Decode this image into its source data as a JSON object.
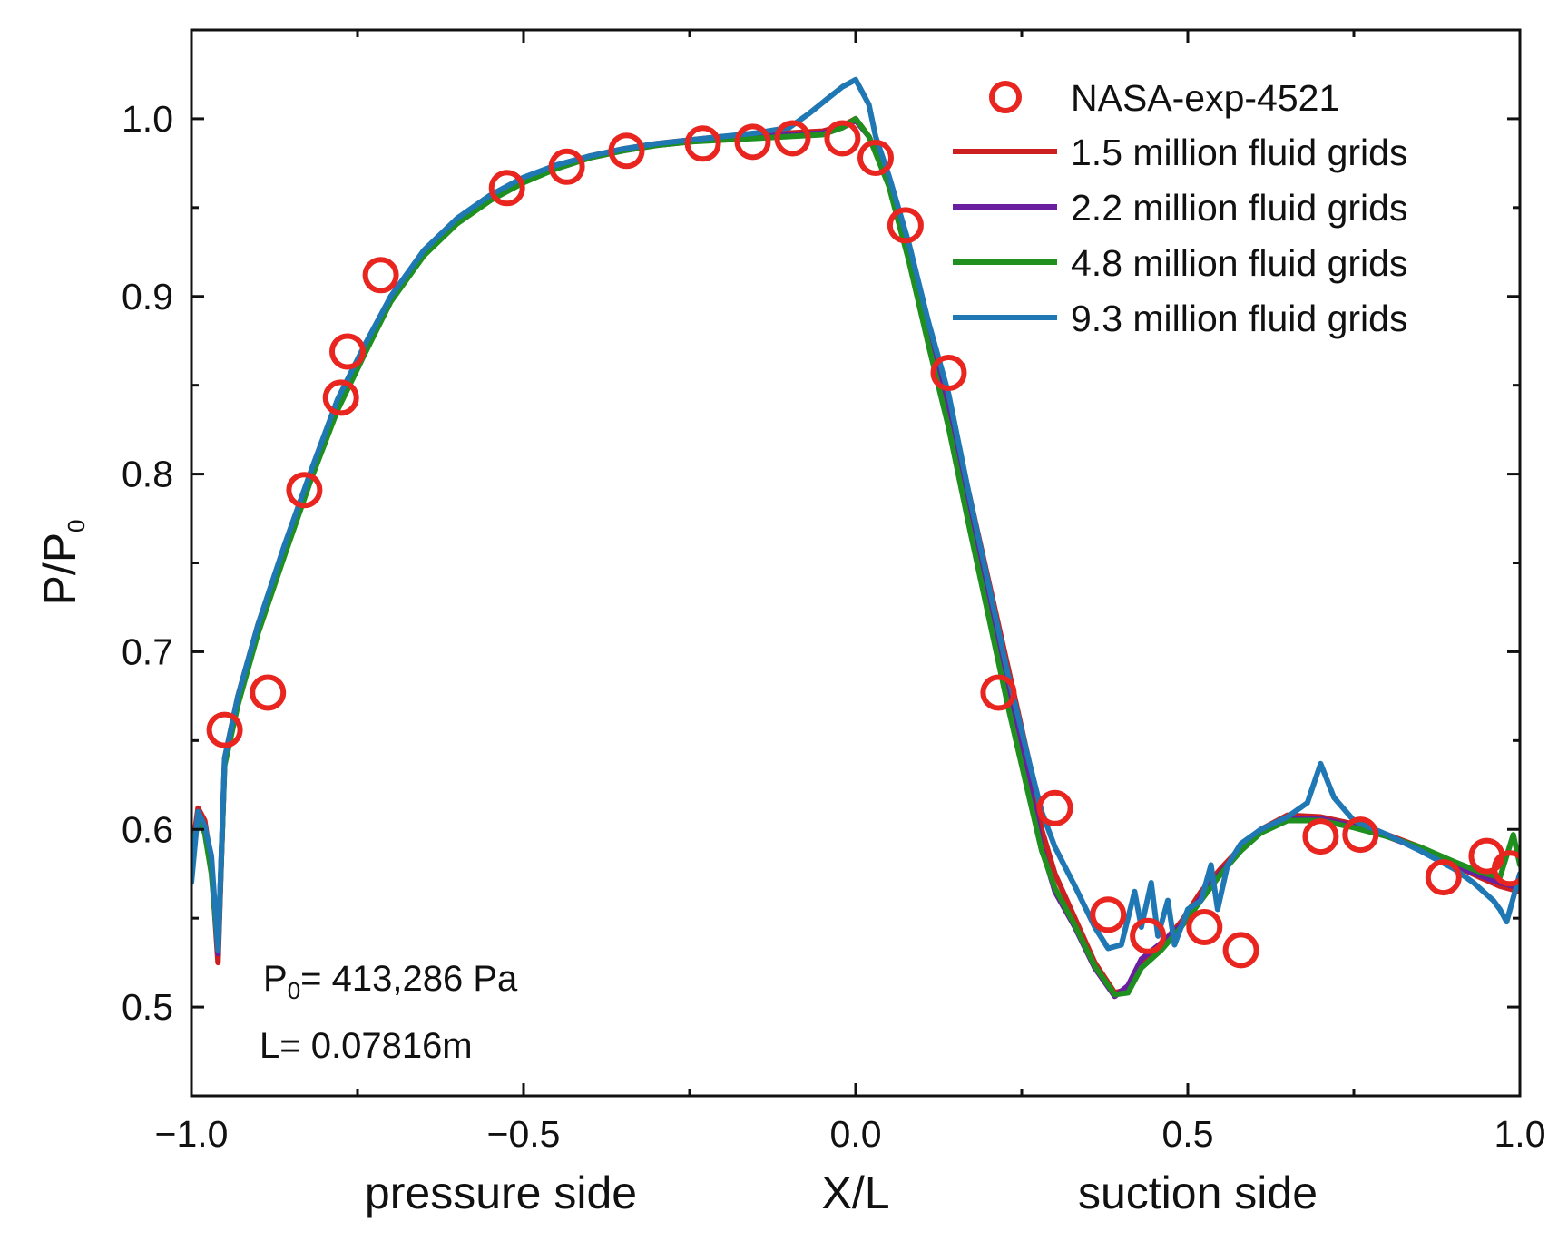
{
  "chart_data": {
    "type": "line",
    "title": "",
    "xlabel": "X/L",
    "ylabel": "P/P",
    "ylabel_subscript": "0",
    "x_side_labels": {
      "left": "pressure side",
      "right": "suction side"
    },
    "xlim": [
      -1.0,
      1.0
    ],
    "ylim": [
      0.45,
      1.05
    ],
    "xticks": [
      -1.0,
      -0.5,
      0.0,
      0.5,
      1.0
    ],
    "xtick_labels": [
      "−1.0",
      "−0.5",
      "0.0",
      "0.5",
      "1.0"
    ],
    "yticks": [
      0.5,
      0.6,
      0.7,
      0.8,
      0.9,
      1.0
    ],
    "ytick_labels": [
      "0.5",
      "0.6",
      "0.7",
      "0.8",
      "0.9",
      "1.0"
    ],
    "grid": false,
    "legend_position": "top-right",
    "annotations": {
      "p0": {
        "prefix": "P",
        "sub": "0",
        "text": "= 413,286 Pa"
      },
      "length": "L= 0.07816m"
    },
    "scatter_series": [
      {
        "name": "NASA-exp-4521",
        "color": "#e8251f",
        "marker": "open-circle",
        "points": [
          [
            -0.95,
            0.656
          ],
          [
            -0.885,
            0.677
          ],
          [
            -0.83,
            0.791
          ],
          [
            -0.775,
            0.843
          ],
          [
            -0.765,
            0.869
          ],
          [
            -0.715,
            0.912
          ],
          [
            -0.525,
            0.961
          ],
          [
            -0.435,
            0.973
          ],
          [
            -0.345,
            0.982
          ],
          [
            -0.23,
            0.986
          ],
          [
            -0.155,
            0.987
          ],
          [
            -0.095,
            0.989
          ],
          [
            -0.02,
            0.989
          ],
          [
            0.03,
            0.978
          ],
          [
            0.075,
            0.94
          ],
          [
            0.14,
            0.857
          ],
          [
            0.215,
            0.677
          ],
          [
            0.3,
            0.612
          ],
          [
            0.38,
            0.552
          ],
          [
            0.44,
            0.54
          ],
          [
            0.525,
            0.545
          ],
          [
            0.58,
            0.532
          ],
          [
            0.7,
            0.596
          ],
          [
            0.76,
            0.597
          ],
          [
            0.885,
            0.573
          ],
          [
            0.95,
            0.585
          ],
          [
            0.985,
            0.578
          ]
        ]
      }
    ],
    "line_series": [
      {
        "name": "1.5 million fluid grids",
        "color": "#cc1f1f",
        "points": [
          [
            -1.0,
            0.585
          ],
          [
            -0.99,
            0.612
          ],
          [
            -0.98,
            0.605
          ],
          [
            -0.97,
            0.58
          ],
          [
            -0.96,
            0.525
          ],
          [
            -0.95,
            0.64
          ],
          [
            -0.93,
            0.675
          ],
          [
            -0.9,
            0.715
          ],
          [
            -0.86,
            0.758
          ],
          [
            -0.82,
            0.8
          ],
          [
            -0.78,
            0.84
          ],
          [
            -0.74,
            0.87
          ],
          [
            -0.7,
            0.9
          ],
          [
            -0.65,
            0.925
          ],
          [
            -0.6,
            0.943
          ],
          [
            -0.55,
            0.956
          ],
          [
            -0.5,
            0.966
          ],
          [
            -0.45,
            0.973
          ],
          [
            -0.4,
            0.979
          ],
          [
            -0.35,
            0.983
          ],
          [
            -0.3,
            0.986
          ],
          [
            -0.25,
            0.988
          ],
          [
            -0.2,
            0.99
          ],
          [
            -0.15,
            0.991
          ],
          [
            -0.1,
            0.992
          ],
          [
            -0.05,
            0.993
          ],
          [
            -0.02,
            0.996
          ],
          [
            0.0,
            1.0
          ],
          [
            0.02,
            0.99
          ],
          [
            0.05,
            0.965
          ],
          [
            0.08,
            0.925
          ],
          [
            0.11,
            0.88
          ],
          [
            0.14,
            0.84
          ],
          [
            0.17,
            0.79
          ],
          [
            0.2,
            0.74
          ],
          [
            0.23,
            0.69
          ],
          [
            0.26,
            0.64
          ],
          [
            0.28,
            0.6
          ],
          [
            0.3,
            0.575
          ],
          [
            0.33,
            0.55
          ],
          [
            0.36,
            0.525
          ],
          [
            0.39,
            0.508
          ],
          [
            0.41,
            0.51
          ],
          [
            0.43,
            0.525
          ],
          [
            0.46,
            0.535
          ],
          [
            0.49,
            0.548
          ],
          [
            0.52,
            0.565
          ],
          [
            0.55,
            0.578
          ],
          [
            0.58,
            0.59
          ],
          [
            0.61,
            0.6
          ],
          [
            0.65,
            0.608
          ],
          [
            0.7,
            0.607
          ],
          [
            0.75,
            0.603
          ],
          [
            0.8,
            0.597
          ],
          [
            0.85,
            0.59
          ],
          [
            0.9,
            0.58
          ],
          [
            0.94,
            0.573
          ],
          [
            0.97,
            0.568
          ],
          [
            1.0,
            0.565
          ]
        ]
      },
      {
        "name": "2.2 million fluid grids",
        "color": "#6a1fa0",
        "points": [
          [
            -1.0,
            0.58
          ],
          [
            -0.99,
            0.608
          ],
          [
            -0.98,
            0.6
          ],
          [
            -0.97,
            0.578
          ],
          [
            -0.96,
            0.53
          ],
          [
            -0.95,
            0.638
          ],
          [
            -0.93,
            0.672
          ],
          [
            -0.9,
            0.712
          ],
          [
            -0.86,
            0.756
          ],
          [
            -0.82,
            0.798
          ],
          [
            -0.78,
            0.838
          ],
          [
            -0.74,
            0.868
          ],
          [
            -0.7,
            0.898
          ],
          [
            -0.65,
            0.924
          ],
          [
            -0.6,
            0.942
          ],
          [
            -0.55,
            0.955
          ],
          [
            -0.5,
            0.965
          ],
          [
            -0.45,
            0.972
          ],
          [
            -0.4,
            0.978
          ],
          [
            -0.35,
            0.982
          ],
          [
            -0.3,
            0.985
          ],
          [
            -0.25,
            0.987
          ],
          [
            -0.2,
            0.989
          ],
          [
            -0.15,
            0.99
          ],
          [
            -0.1,
            0.991
          ],
          [
            -0.05,
            0.992
          ],
          [
            -0.02,
            0.995
          ],
          [
            0.0,
            0.999
          ],
          [
            0.02,
            0.99
          ],
          [
            0.05,
            0.963
          ],
          [
            0.08,
            0.922
          ],
          [
            0.11,
            0.876
          ],
          [
            0.14,
            0.832
          ],
          [
            0.17,
            0.78
          ],
          [
            0.2,
            0.728
          ],
          [
            0.23,
            0.676
          ],
          [
            0.26,
            0.628
          ],
          [
            0.28,
            0.59
          ],
          [
            0.3,
            0.565
          ],
          [
            0.33,
            0.545
          ],
          [
            0.36,
            0.522
          ],
          [
            0.39,
            0.506
          ],
          [
            0.41,
            0.512
          ],
          [
            0.43,
            0.527
          ],
          [
            0.46,
            0.536
          ],
          [
            0.49,
            0.546
          ],
          [
            0.52,
            0.562
          ],
          [
            0.55,
            0.576
          ],
          [
            0.58,
            0.589
          ],
          [
            0.61,
            0.599
          ],
          [
            0.65,
            0.606
          ],
          [
            0.7,
            0.606
          ],
          [
            0.75,
            0.602
          ],
          [
            0.8,
            0.596
          ],
          [
            0.85,
            0.589
          ],
          [
            0.9,
            0.58
          ],
          [
            0.94,
            0.574
          ],
          [
            0.97,
            0.57
          ],
          [
            1.0,
            0.567
          ]
        ]
      },
      {
        "name": "4.8 million fluid grids",
        "color": "#1f8f1f",
        "points": [
          [
            -1.0,
            0.582
          ],
          [
            -0.99,
            0.606
          ],
          [
            -0.98,
            0.598
          ],
          [
            -0.97,
            0.575
          ],
          [
            -0.96,
            0.532
          ],
          [
            -0.95,
            0.636
          ],
          [
            -0.93,
            0.67
          ],
          [
            -0.9,
            0.71
          ],
          [
            -0.86,
            0.754
          ],
          [
            -0.82,
            0.797
          ],
          [
            -0.78,
            0.836
          ],
          [
            -0.74,
            0.867
          ],
          [
            -0.7,
            0.897
          ],
          [
            -0.65,
            0.923
          ],
          [
            -0.6,
            0.941
          ],
          [
            -0.55,
            0.954
          ],
          [
            -0.5,
            0.964
          ],
          [
            -0.45,
            0.972
          ],
          [
            -0.4,
            0.978
          ],
          [
            -0.35,
            0.982
          ],
          [
            -0.3,
            0.985
          ],
          [
            -0.25,
            0.987
          ],
          [
            -0.2,
            0.988
          ],
          [
            -0.15,
            0.989
          ],
          [
            -0.1,
            0.99
          ],
          [
            -0.05,
            0.991
          ],
          [
            -0.02,
            0.995
          ],
          [
            0.0,
            1.0
          ],
          [
            0.02,
            0.99
          ],
          [
            0.05,
            0.962
          ],
          [
            0.08,
            0.92
          ],
          [
            0.11,
            0.872
          ],
          [
            0.14,
            0.826
          ],
          [
            0.17,
            0.772
          ],
          [
            0.2,
            0.72
          ],
          [
            0.23,
            0.668
          ],
          [
            0.26,
            0.62
          ],
          [
            0.28,
            0.588
          ],
          [
            0.3,
            0.567
          ],
          [
            0.33,
            0.546
          ],
          [
            0.36,
            0.523
          ],
          [
            0.39,
            0.507
          ],
          [
            0.41,
            0.508
          ],
          [
            0.43,
            0.522
          ],
          [
            0.46,
            0.532
          ],
          [
            0.49,
            0.545
          ],
          [
            0.52,
            0.56
          ],
          [
            0.55,
            0.575
          ],
          [
            0.58,
            0.588
          ],
          [
            0.61,
            0.598
          ],
          [
            0.65,
            0.605
          ],
          [
            0.7,
            0.605
          ],
          [
            0.75,
            0.601
          ],
          [
            0.8,
            0.596
          ],
          [
            0.85,
            0.59
          ],
          [
            0.9,
            0.582
          ],
          [
            0.94,
            0.576
          ],
          [
            0.97,
            0.573
          ],
          [
            0.99,
            0.597
          ],
          [
            1.0,
            0.58
          ]
        ]
      },
      {
        "name": "9.3 million fluid grids",
        "color": "#1f77b4",
        "points": [
          [
            -1.0,
            0.57
          ],
          [
            -0.99,
            0.61
          ],
          [
            -0.98,
            0.602
          ],
          [
            -0.97,
            0.585
          ],
          [
            -0.96,
            0.532
          ],
          [
            -0.95,
            0.64
          ],
          [
            -0.93,
            0.675
          ],
          [
            -0.9,
            0.715
          ],
          [
            -0.86,
            0.76
          ],
          [
            -0.82,
            0.802
          ],
          [
            -0.78,
            0.842
          ],
          [
            -0.74,
            0.872
          ],
          [
            -0.7,
            0.9
          ],
          [
            -0.65,
            0.926
          ],
          [
            -0.6,
            0.944
          ],
          [
            -0.55,
            0.957
          ],
          [
            -0.5,
            0.967
          ],
          [
            -0.45,
            0.974
          ],
          [
            -0.4,
            0.979
          ],
          [
            -0.35,
            0.983
          ],
          [
            -0.3,
            0.986
          ],
          [
            -0.25,
            0.988
          ],
          [
            -0.2,
            0.99
          ],
          [
            -0.15,
            0.992
          ],
          [
            -0.1,
            0.995
          ],
          [
            -0.07,
            1.003
          ],
          [
            -0.04,
            1.012
          ],
          [
            -0.02,
            1.018
          ],
          [
            0.0,
            1.022
          ],
          [
            0.02,
            1.008
          ],
          [
            0.03,
            0.99
          ],
          [
            0.05,
            0.968
          ],
          [
            0.08,
            0.93
          ],
          [
            0.11,
            0.885
          ],
          [
            0.14,
            0.845
          ],
          [
            0.17,
            0.79
          ],
          [
            0.2,
            0.738
          ],
          [
            0.23,
            0.686
          ],
          [
            0.26,
            0.64
          ],
          [
            0.28,
            0.61
          ],
          [
            0.3,
            0.59
          ],
          [
            0.33,
            0.568
          ],
          [
            0.36,
            0.545
          ],
          [
            0.38,
            0.533
          ],
          [
            0.4,
            0.535
          ],
          [
            0.42,
            0.565
          ],
          [
            0.43,
            0.545
          ],
          [
            0.445,
            0.57
          ],
          [
            0.455,
            0.54
          ],
          [
            0.47,
            0.56
          ],
          [
            0.48,
            0.535
          ],
          [
            0.5,
            0.555
          ],
          [
            0.52,
            0.56
          ],
          [
            0.535,
            0.58
          ],
          [
            0.545,
            0.555
          ],
          [
            0.56,
            0.58
          ],
          [
            0.58,
            0.592
          ],
          [
            0.61,
            0.6
          ],
          [
            0.65,
            0.607
          ],
          [
            0.68,
            0.615
          ],
          [
            0.7,
            0.637
          ],
          [
            0.72,
            0.618
          ],
          [
            0.75,
            0.605
          ],
          [
            0.8,
            0.597
          ],
          [
            0.85,
            0.588
          ],
          [
            0.9,
            0.578
          ],
          [
            0.93,
            0.57
          ],
          [
            0.96,
            0.56
          ],
          [
            0.97,
            0.555
          ],
          [
            0.98,
            0.548
          ],
          [
            1.0,
            0.575
          ]
        ]
      }
    ]
  }
}
